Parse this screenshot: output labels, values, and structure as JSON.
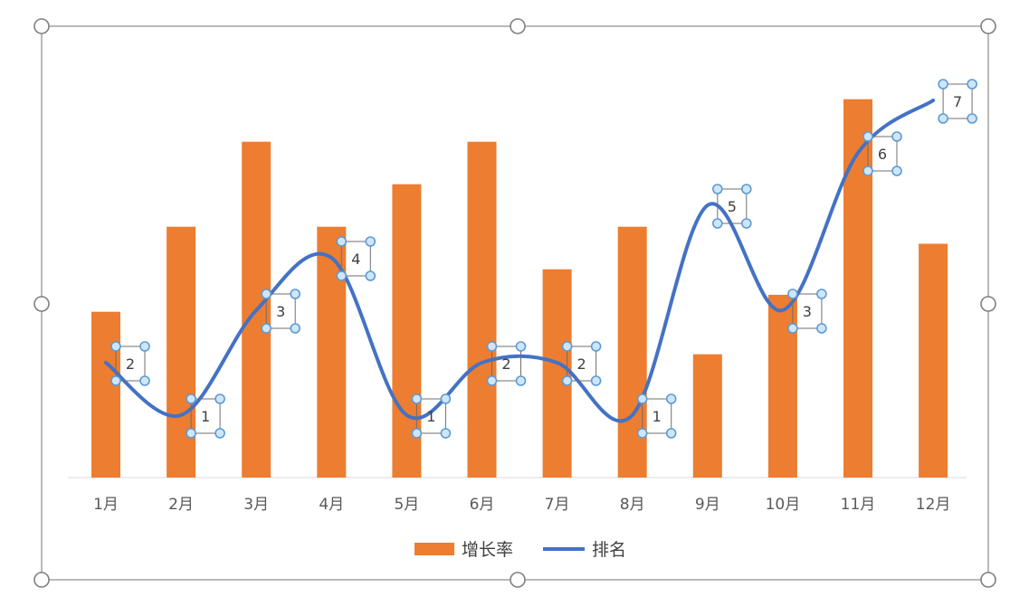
{
  "chart_data": {
    "type": "bar",
    "categories": [
      "1月",
      "2月",
      "3月",
      "4月",
      "5月",
      "6月",
      "7月",
      "8月",
      "9月",
      "10月",
      "11月",
      "12月"
    ],
    "series": [
      {
        "name": "增长率",
        "type": "bar",
        "color": "#ED7D31",
        "values": [
          39,
          59,
          79,
          59,
          69,
          79,
          49,
          59,
          29,
          43,
          89,
          55
        ]
      },
      {
        "name": "排名",
        "type": "line",
        "smooth": true,
        "color": "#4472C4",
        "values": [
          2,
          1,
          3,
          4,
          1,
          2,
          2,
          1,
          5,
          3,
          6,
          7
        ],
        "data_labels": [
          "2",
          "1",
          "3",
          "4",
          "1",
          "2",
          "2",
          "1",
          "5",
          "3",
          "6",
          "7"
        ]
      }
    ],
    "legend": {
      "position": "bottom"
    },
    "grid": false,
    "selection_handles_color": "#5B9BD5"
  }
}
